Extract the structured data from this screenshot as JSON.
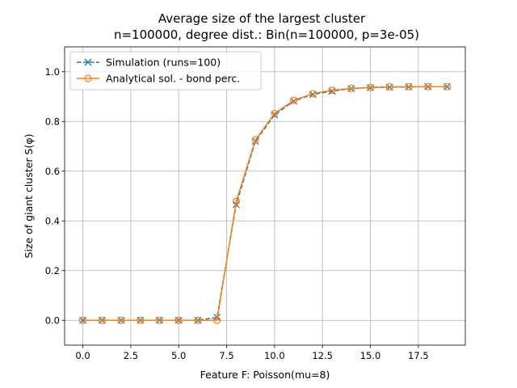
{
  "chart_data": {
    "type": "line",
    "title": "Average size of the largest cluster",
    "subtitle": "n=100000, degree dist.: Bin(n=100000, p=3e-05)",
    "xlabel": "Feature F: Poisson(mu=8)",
    "ylabel": "Size of giant cluster S(φ)",
    "xlim": [
      -0.95,
      19.95
    ],
    "ylim": [
      -0.1,
      1.1
    ],
    "xticks": [
      "0.0",
      "2.5",
      "5.0",
      "7.5",
      "10.0",
      "12.5",
      "15.0",
      "17.5"
    ],
    "yticks": [
      "0.0",
      "0.2",
      "0.4",
      "0.6",
      "0.8",
      "1.0"
    ],
    "grid": true,
    "legend_position": "top-left",
    "series": [
      {
        "name": "Simulation (runs=100)",
        "color": "#1f77b4",
        "linestyle": "dashed",
        "marker": "x",
        "x": [
          0,
          1,
          2,
          3,
          4,
          5,
          6,
          7,
          8,
          9,
          10,
          11,
          12,
          13,
          14,
          15,
          16,
          17,
          18,
          19
        ],
        "y": [
          0,
          0,
          0,
          0,
          0,
          0,
          0,
          0.012,
          0.466,
          0.72,
          0.826,
          0.882,
          0.909,
          0.922,
          0.932,
          0.936,
          0.938,
          0.939,
          0.94,
          0.94
        ]
      },
      {
        "name": "Analytical sol. - bond perc.",
        "color": "#ff7f0e",
        "linestyle": "solid",
        "marker": "circle",
        "x": [
          0,
          1,
          2,
          3,
          4,
          5,
          6,
          7,
          8,
          9,
          10,
          11,
          12,
          13,
          14,
          15,
          16,
          17,
          18,
          19
        ],
        "y": [
          0,
          0,
          0,
          0,
          0,
          0,
          0,
          0,
          0.478,
          0.726,
          0.832,
          0.885,
          0.912,
          0.926,
          0.933,
          0.937,
          0.939,
          0.94,
          0.94,
          0.94
        ]
      }
    ]
  }
}
